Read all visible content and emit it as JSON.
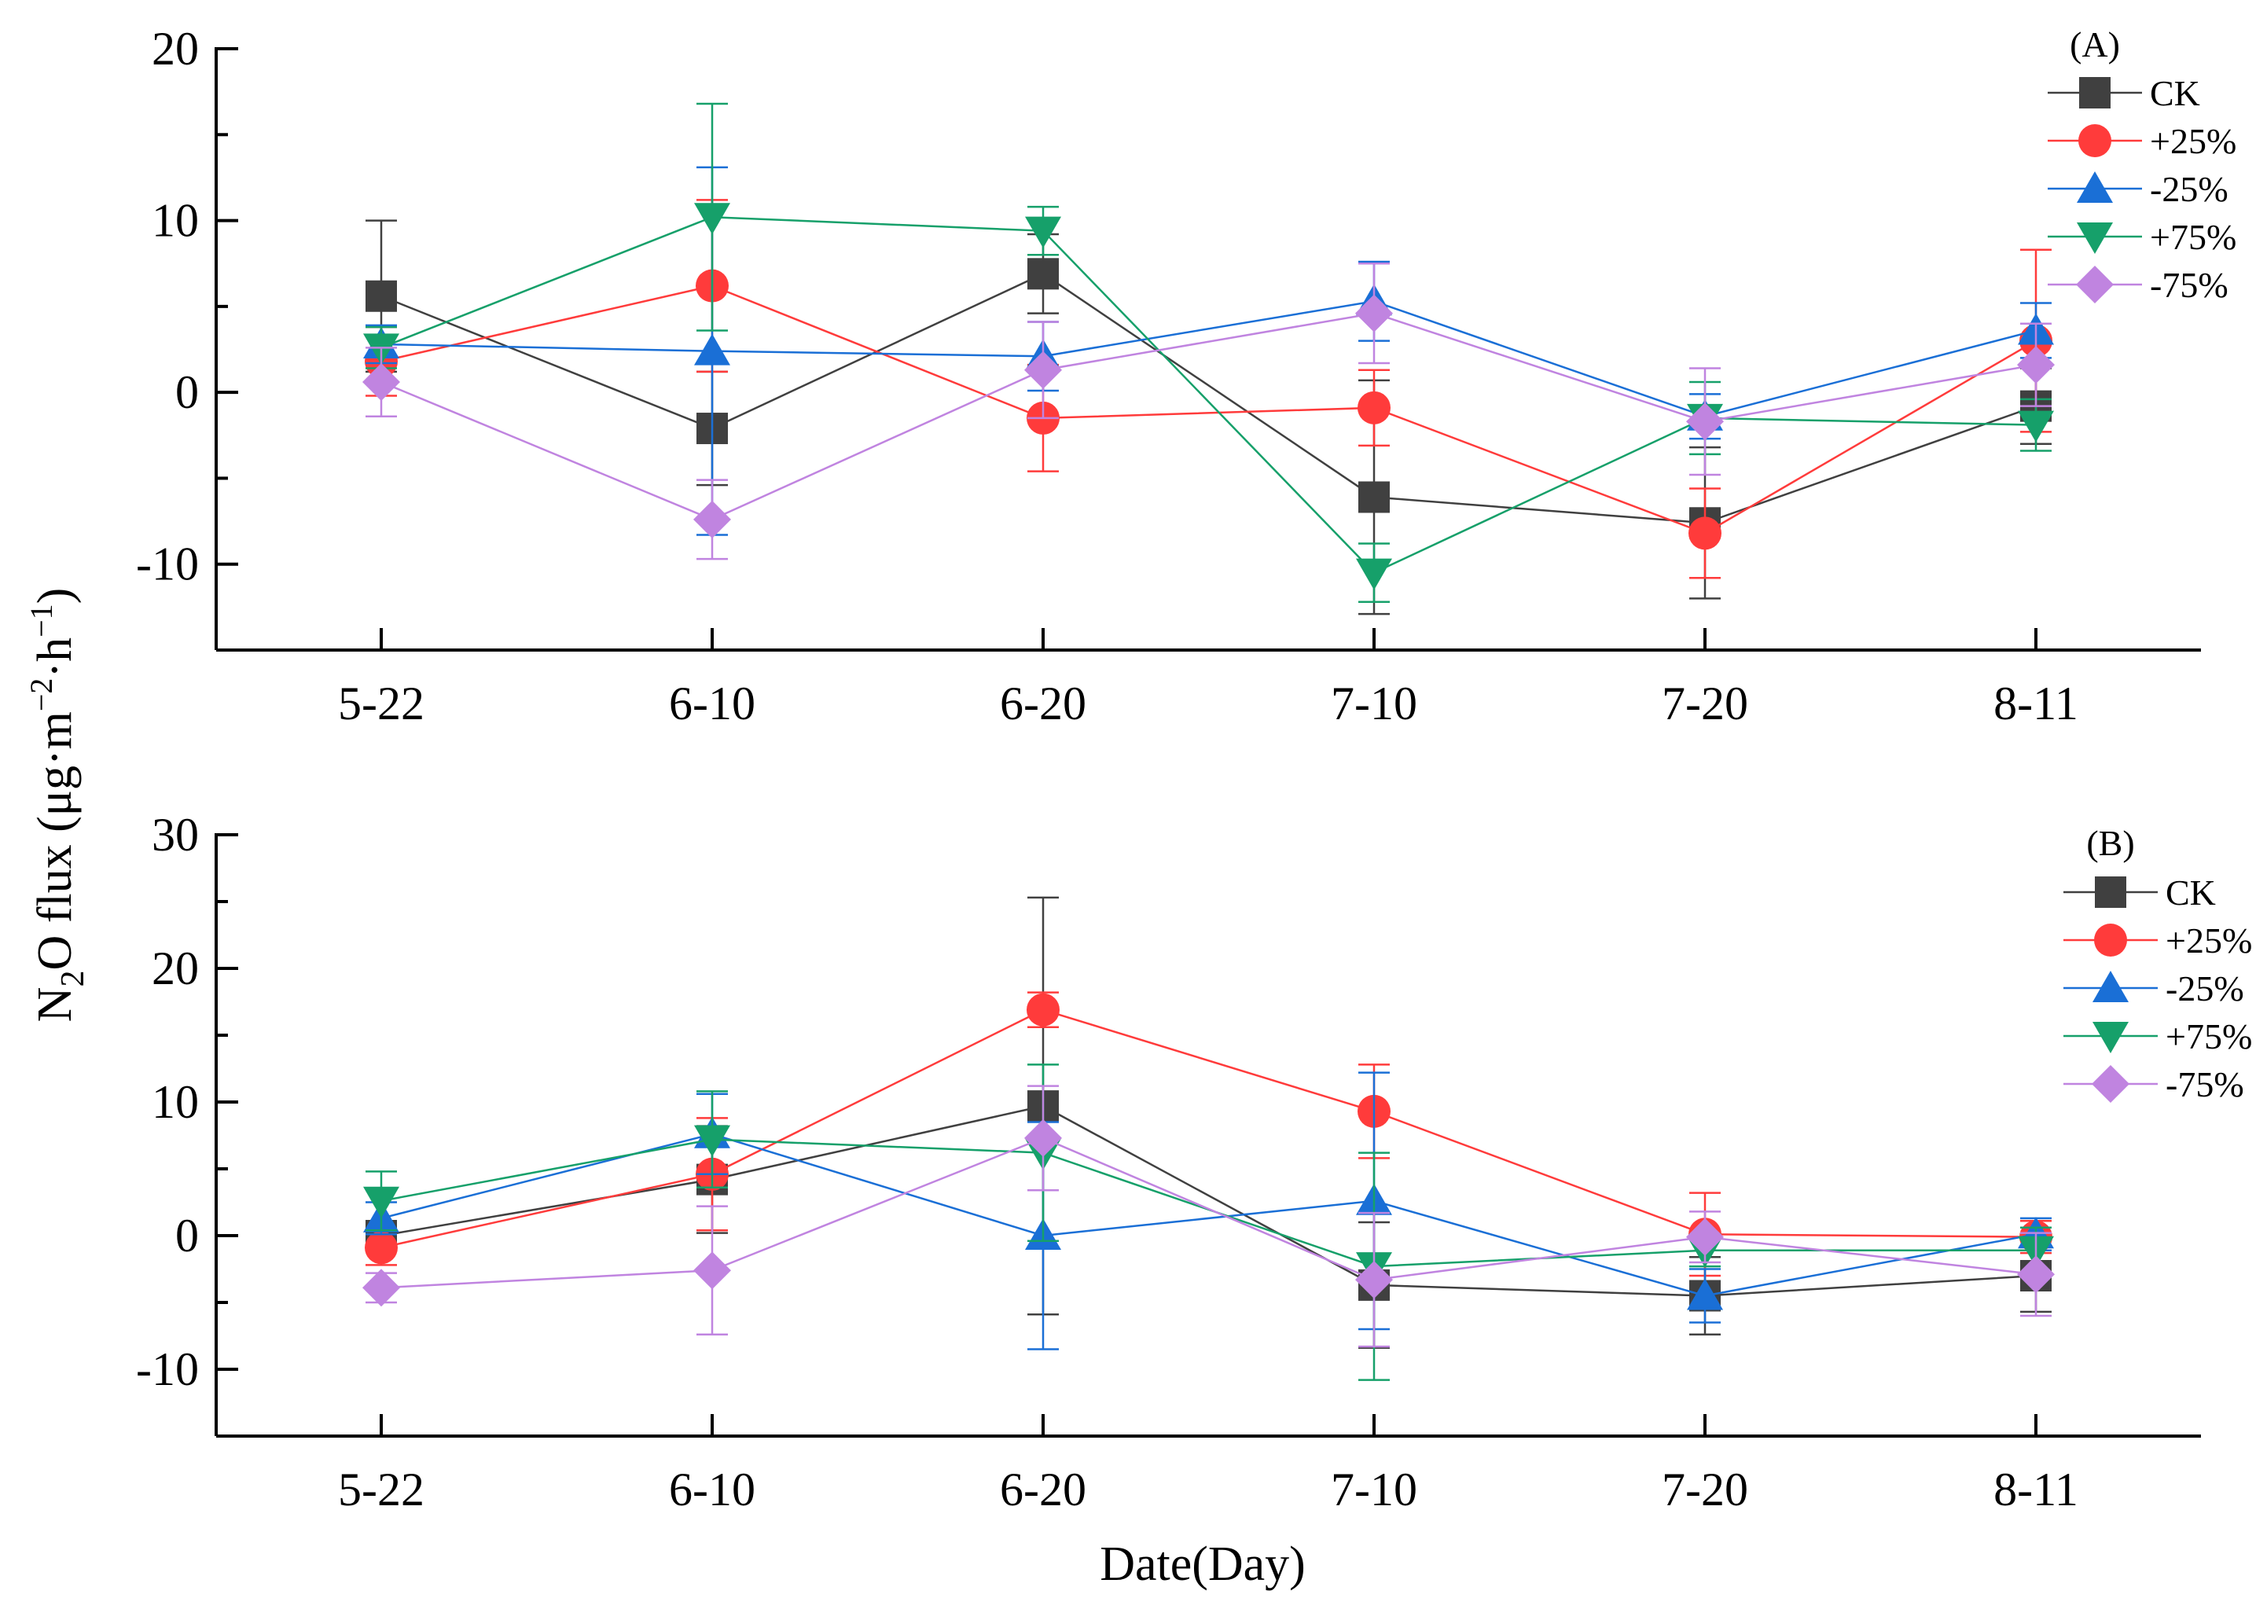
{
  "figure": {
    "ylabel_main": "N",
    "ylabel_sub": "2",
    "ylabel_main2": "O flux (μg·m",
    "ylabel_sup1": "−2",
    "ylabel_mid": "·h",
    "ylabel_sup2": "−1",
    "ylabel_end": ")",
    "xlabel": "Date(Day)"
  },
  "series_style": [
    {
      "name": "CK",
      "color": "#404040",
      "marker": "square"
    },
    {
      "name": "+25%",
      "color": "#ff3b3b",
      "marker": "circle"
    },
    {
      "name": "-25%",
      "color": "#1a6fd6",
      "marker": "triangle-up"
    },
    {
      "name": "+75%",
      "color": "#16a06a",
      "marker": "triangle-down"
    },
    {
      "name": "-75%",
      "color": "#c084e0",
      "marker": "diamond"
    }
  ],
  "chart_data": [
    {
      "type": "line",
      "panel_label": "(A)",
      "categories": [
        "5-22",
        "6-10",
        "6-20",
        "7-10",
        "7-20",
        "8-11"
      ],
      "ylim": [
        -15,
        20
      ],
      "yticks": [
        -10,
        0,
        10,
        20
      ],
      "ytick_labels": [
        "-10",
        "0",
        "10",
        "20"
      ],
      "legend_position": "top-right",
      "series": [
        {
          "name": "CK",
          "values": [
            5.6,
            -2.1,
            6.9,
            -6.1,
            -7.6,
            -0.8
          ],
          "err": [
            4.4,
            3.3,
            2.3,
            6.8,
            4.4,
            2.2
          ]
        },
        {
          "name": "+25%",
          "values": [
            1.8,
            6.2,
            -1.5,
            -0.9,
            -8.2,
            3.0
          ],
          "err": [
            2.0,
            5.0,
            3.1,
            2.2,
            2.6,
            5.3
          ]
        },
        {
          "name": "-25%",
          "values": [
            2.8,
            2.4,
            2.1,
            5.3,
            -1.4,
            3.6
          ],
          "err": [
            1.1,
            10.7,
            2.0,
            2.3,
            1.3,
            1.6
          ]
        },
        {
          "name": "+75%",
          "values": [
            2.6,
            10.2,
            9.4,
            -10.5,
            -1.5,
            -1.9
          ],
          "err": [
            1.2,
            6.6,
            1.4,
            1.7,
            2.1,
            1.5
          ]
        },
        {
          "name": "-75%",
          "values": [
            0.6,
            -7.4,
            1.3,
            4.6,
            -1.7,
            1.6
          ],
          "err": [
            2.0,
            2.3,
            2.8,
            2.9,
            3.1,
            2.4
          ]
        }
      ]
    },
    {
      "type": "line",
      "panel_label": "(B)",
      "categories": [
        "5-22",
        "6-10",
        "6-20",
        "7-10",
        "7-20",
        "8-11"
      ],
      "ylim": [
        -15,
        30
      ],
      "yticks": [
        -10,
        0,
        10,
        20,
        30
      ],
      "ytick_labels": [
        "-10",
        "0",
        "10",
        "20",
        "30"
      ],
      "legend_position": "top-right",
      "series": [
        {
          "name": "CK",
          "values": [
            0.0,
            4.2,
            9.7,
            -3.7,
            -4.5,
            -3.0
          ],
          "err": [
            1.1,
            4.0,
            15.6,
            4.7,
            2.9,
            2.7
          ]
        },
        {
          "name": "+25%",
          "values": [
            -0.9,
            4.6,
            16.9,
            9.3,
            0.1,
            -0.1
          ],
          "err": [
            1.3,
            4.2,
            1.3,
            3.5,
            3.1,
            1.2
          ]
        },
        {
          "name": "-25%",
          "values": [
            1.3,
            7.6,
            0.0,
            2.6,
            -4.5,
            0.1
          ],
          "err": [
            1.2,
            3.0,
            8.5,
            9.6,
            2.0,
            1.2
          ]
        },
        {
          "name": "+75%",
          "values": [
            2.6,
            7.2,
            6.2,
            -2.3,
            -1.1,
            -1.1
          ],
          "err": [
            2.2,
            3.6,
            6.6,
            8.5,
            1.2,
            1.7
          ]
        },
        {
          "name": "-75%",
          "values": [
            -3.9,
            -2.6,
            7.3,
            -3.3,
            -0.1,
            -2.9
          ],
          "err": [
            1.1,
            4.8,
            3.9,
            5.0,
            1.9,
            3.1
          ]
        }
      ]
    }
  ]
}
